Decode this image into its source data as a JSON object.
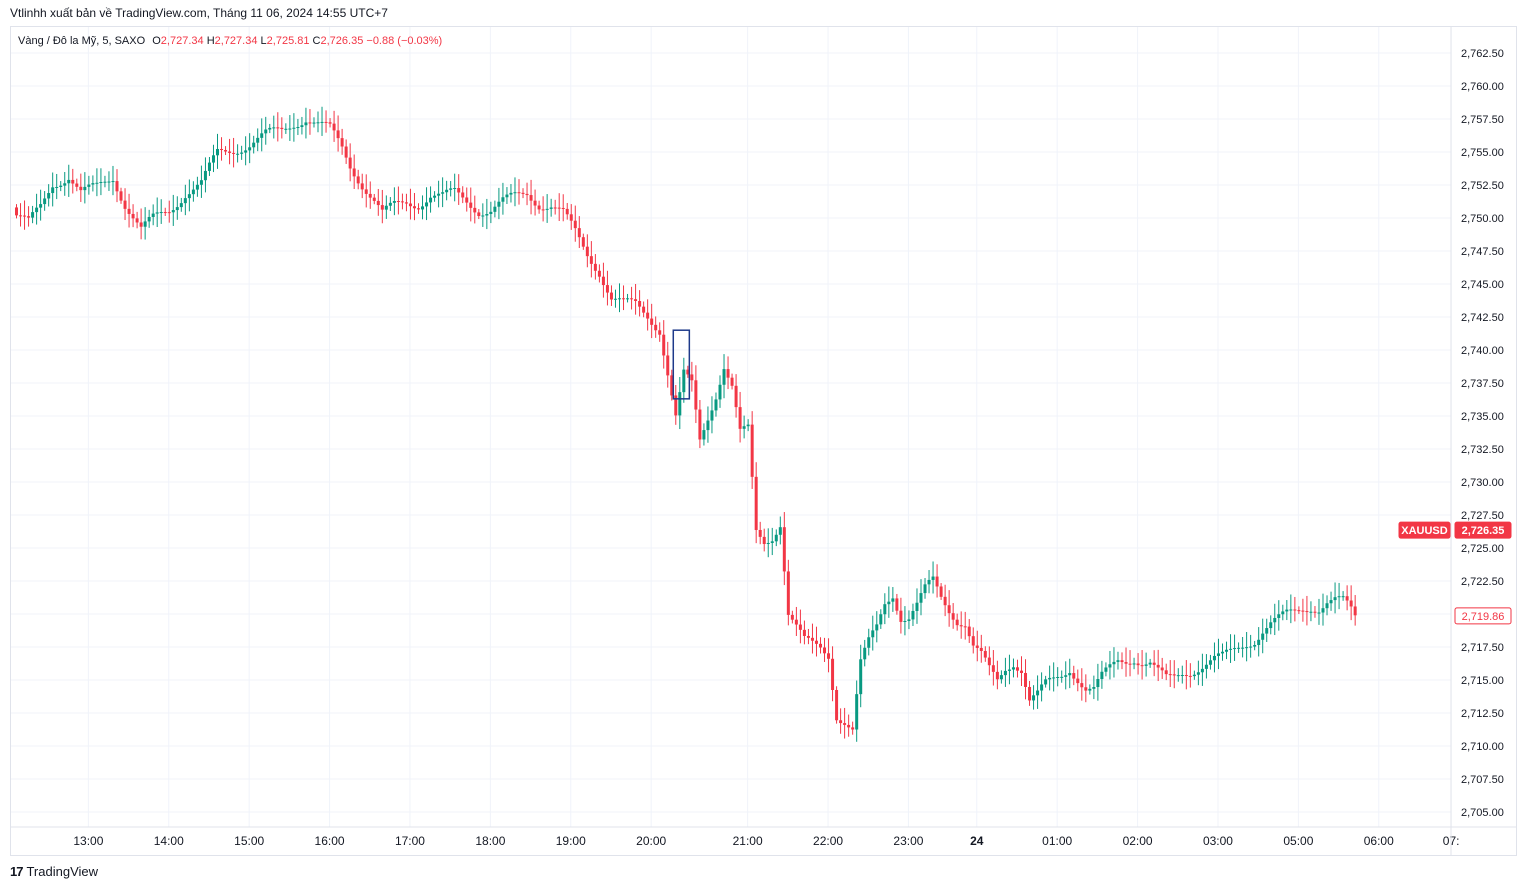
{
  "header": {
    "publish_text": "Vtlinhh xuất bản về TradingView.com, Tháng 11 06, 2024 14:55 UTC+7"
  },
  "legend": {
    "symbol": "Vàng / Đô la Mỹ, 5, SAXO",
    "open_label": "O",
    "open_value": "2,727.34",
    "high_label": "H",
    "high_value": "2,727.34",
    "low_label": "L",
    "low_value": "2,725.81",
    "close_label": "C",
    "close_value": "2,726.35",
    "change": "−0.88 (−0.03%)"
  },
  "footer": {
    "brand": "TradingView",
    "logo_glyph": "17"
  },
  "colors": {
    "up": "#089981",
    "down": "#f23645",
    "grid": "#f0f3fa",
    "axis_text": "#131722",
    "highlight_box": "#1e3a8a"
  },
  "chart_data": {
    "type": "candlestick",
    "title": "",
    "ylim": [
      2703.5,
      2764.5
    ],
    "grid": true,
    "y_ticks": [
      "2,762.50",
      "2,760.00",
      "2,757.50",
      "2,755.00",
      "2,752.50",
      "2,750.00",
      "2,747.50",
      "2,745.00",
      "2,742.50",
      "2,740.00",
      "2,737.50",
      "2,735.00",
      "2,732.50",
      "2,730.00",
      "2,727.50",
      "2,725.00",
      "2,722.50",
      "2,720.00",
      "2,717.50",
      "2,715.00",
      "2,712.50",
      "2,710.00",
      "2,707.50",
      "2,705.00"
    ],
    "y_tick_values": [
      2762.5,
      2760,
      2757.5,
      2755,
      2752.5,
      2750,
      2747.5,
      2745,
      2742.5,
      2740,
      2737.5,
      2735,
      2732.5,
      2730,
      2727.5,
      2725,
      2722.5,
      2720,
      2717.5,
      2715,
      2712.5,
      2710,
      2707.5,
      2705
    ],
    "x_tick_labels": [
      "13:00",
      "14:00",
      "15:00",
      "16:00",
      "17:00",
      "18:00",
      "19:00",
      "20:00",
      "21:00",
      "22:00",
      "23:00",
      "24",
      "01:00",
      "02:00",
      "03:00",
      "05:00",
      "06:00",
      "07:"
    ],
    "x_tick_bar_index": [
      18,
      38,
      58,
      78,
      98,
      118,
      138,
      158,
      182,
      202,
      222,
      239,
      259,
      279,
      299,
      319,
      339,
      357
    ],
    "bold_tick_labels": [
      "24"
    ],
    "price_labels": [
      {
        "text": "XAUUSD",
        "value": 2726.35,
        "style": "filled",
        "color": "#f23645"
      },
      {
        "text": "2,726.35",
        "value": 2726.35,
        "style": "filled",
        "color": "#f23645"
      },
      {
        "text": "2,719.86",
        "value": 2719.86,
        "style": "outlined",
        "color": "#f23645"
      }
    ],
    "highlight": {
      "bar_from": 164,
      "bar_to": 167,
      "price_high": 2741.5,
      "price_low": 2736.3
    },
    "anchors": [
      [
        0,
        2750.2
      ],
      [
        3,
        2749.6
      ],
      [
        6,
        2750.8
      ],
      [
        9,
        2752.6
      ],
      [
        13,
        2753.2
      ],
      [
        16,
        2751.9
      ],
      [
        20,
        2752.3
      ],
      [
        24,
        2753.1
      ],
      [
        27,
        2751.1
      ],
      [
        31,
        2749.1
      ],
      [
        34,
        2749.9
      ],
      [
        38,
        2750.6
      ],
      [
        42,
        2751.9
      ],
      [
        46,
        2752.6
      ],
      [
        50,
        2754.9
      ],
      [
        54,
        2755.2
      ],
      [
        58,
        2755.6
      ],
      [
        62,
        2756.3
      ],
      [
        66,
        2756.6
      ],
      [
        69,
        2757.2
      ],
      [
        72,
        2757.6
      ],
      [
        75,
        2757.1
      ],
      [
        78,
        2756.7
      ],
      [
        81,
        2755.3
      ],
      [
        83,
        2754.0
      ],
      [
        86,
        2752.6
      ],
      [
        89,
        2751.3
      ],
      [
        91,
        2750.3
      ],
      [
        94,
        2750.9
      ],
      [
        97,
        2751.2
      ],
      [
        100,
        2751.1
      ],
      [
        103,
        2751.7
      ],
      [
        106,
        2751.6
      ],
      [
        109,
        2751.9
      ],
      [
        112,
        2751.3
      ],
      [
        115,
        2750.6
      ],
      [
        118,
        2750.6
      ],
      [
        121,
        2751.2
      ],
      [
        124,
        2751.6
      ],
      [
        127,
        2751.9
      ],
      [
        130,
        2751.1
      ],
      [
        133,
        2750.9
      ],
      [
        136,
        2750.3
      ],
      [
        139,
        2748.9
      ],
      [
        142,
        2747.3
      ],
      [
        145,
        2746.0
      ],
      [
        148,
        2743.9
      ],
      [
        151,
        2743.5
      ],
      [
        154,
        2743.4
      ],
      [
        157,
        2742.6
      ],
      [
        160,
        2741.6
      ],
      [
        162,
        2738.3
      ],
      [
        164,
        2734.9
      ],
      [
        166,
        2738.1
      ],
      [
        168,
        2737.3
      ],
      [
        170,
        2733.1
      ],
      [
        172,
        2734.9
      ],
      [
        174,
        2736.7
      ],
      [
        176,
        2738.9
      ],
      [
        178,
        2737.3
      ],
      [
        180,
        2733.7
      ],
      [
        182,
        2733.9
      ],
      [
        184,
        2726.1
      ],
      [
        186,
        2725.4
      ],
      [
        188,
        2725.9
      ],
      [
        190,
        2727.0
      ],
      [
        192,
        2720.1
      ],
      [
        194,
        2719.0
      ],
      [
        196,
        2717.9
      ],
      [
        198,
        2717.6
      ],
      [
        200,
        2717.4
      ],
      [
        202,
        2716.9
      ],
      [
        204,
        2712.4
      ],
      [
        206,
        2711.9
      ],
      [
        208,
        2711.2
      ],
      [
        210,
        2716.2
      ],
      [
        212,
        2717.8
      ],
      [
        214,
        2719.0
      ],
      [
        216,
        2720.9
      ],
      [
        218,
        2721.6
      ],
      [
        220,
        2719.8
      ],
      [
        222,
        2719.7
      ],
      [
        224,
        2720.6
      ],
      [
        226,
        2721.8
      ],
      [
        228,
        2722.5
      ],
      [
        230,
        2721.3
      ],
      [
        232,
        2720.4
      ],
      [
        234,
        2719.6
      ],
      [
        236,
        2719.3
      ],
      [
        238,
        2717.5
      ],
      [
        240,
        2716.8
      ],
      [
        242,
        2715.7
      ],
      [
        244,
        2714.9
      ],
      [
        246,
        2715.9
      ],
      [
        248,
        2716.4
      ],
      [
        250,
        2715.9
      ],
      [
        252,
        2713.5
      ],
      [
        254,
        2713.9
      ],
      [
        256,
        2714.6
      ],
      [
        258,
        2714.9
      ],
      [
        260,
        2715.3
      ],
      [
        262,
        2715.9
      ],
      [
        264,
        2715.2
      ],
      [
        266,
        2714.4
      ],
      [
        268,
        2714.3
      ],
      [
        270,
        2715.2
      ],
      [
        272,
        2715.8
      ],
      [
        274,
        2716.4
      ],
      [
        276,
        2716.5
      ],
      [
        278,
        2716.7
      ],
      [
        280,
        2716.4
      ],
      [
        282,
        2716.3
      ],
      [
        284,
        2715.6
      ],
      [
        286,
        2715.0
      ],
      [
        288,
        2715.1
      ],
      [
        290,
        2715.5
      ],
      [
        292,
        2715.7
      ],
      [
        294,
        2716.0
      ],
      [
        296,
        2716.3
      ],
      [
        298,
        2716.6
      ],
      [
        300,
        2716.7
      ],
      [
        302,
        2717.0
      ],
      [
        304,
        2717.4
      ],
      [
        306,
        2717.8
      ],
      [
        308,
        2718.1
      ],
      [
        310,
        2718.8
      ],
      [
        312,
        2719.3
      ],
      [
        314,
        2719.6
      ],
      [
        316,
        2719.9
      ],
      [
        318,
        2720.1
      ],
      [
        320,
        2720.4
      ],
      [
        322,
        2720.6
      ],
      [
        324,
        2720.5
      ],
      [
        326,
        2720.9
      ],
      [
        328,
        2721.0
      ],
      [
        330,
        2720.9
      ],
      [
        331,
        2720.6
      ],
      [
        333,
        2719.9
      ]
    ]
  }
}
